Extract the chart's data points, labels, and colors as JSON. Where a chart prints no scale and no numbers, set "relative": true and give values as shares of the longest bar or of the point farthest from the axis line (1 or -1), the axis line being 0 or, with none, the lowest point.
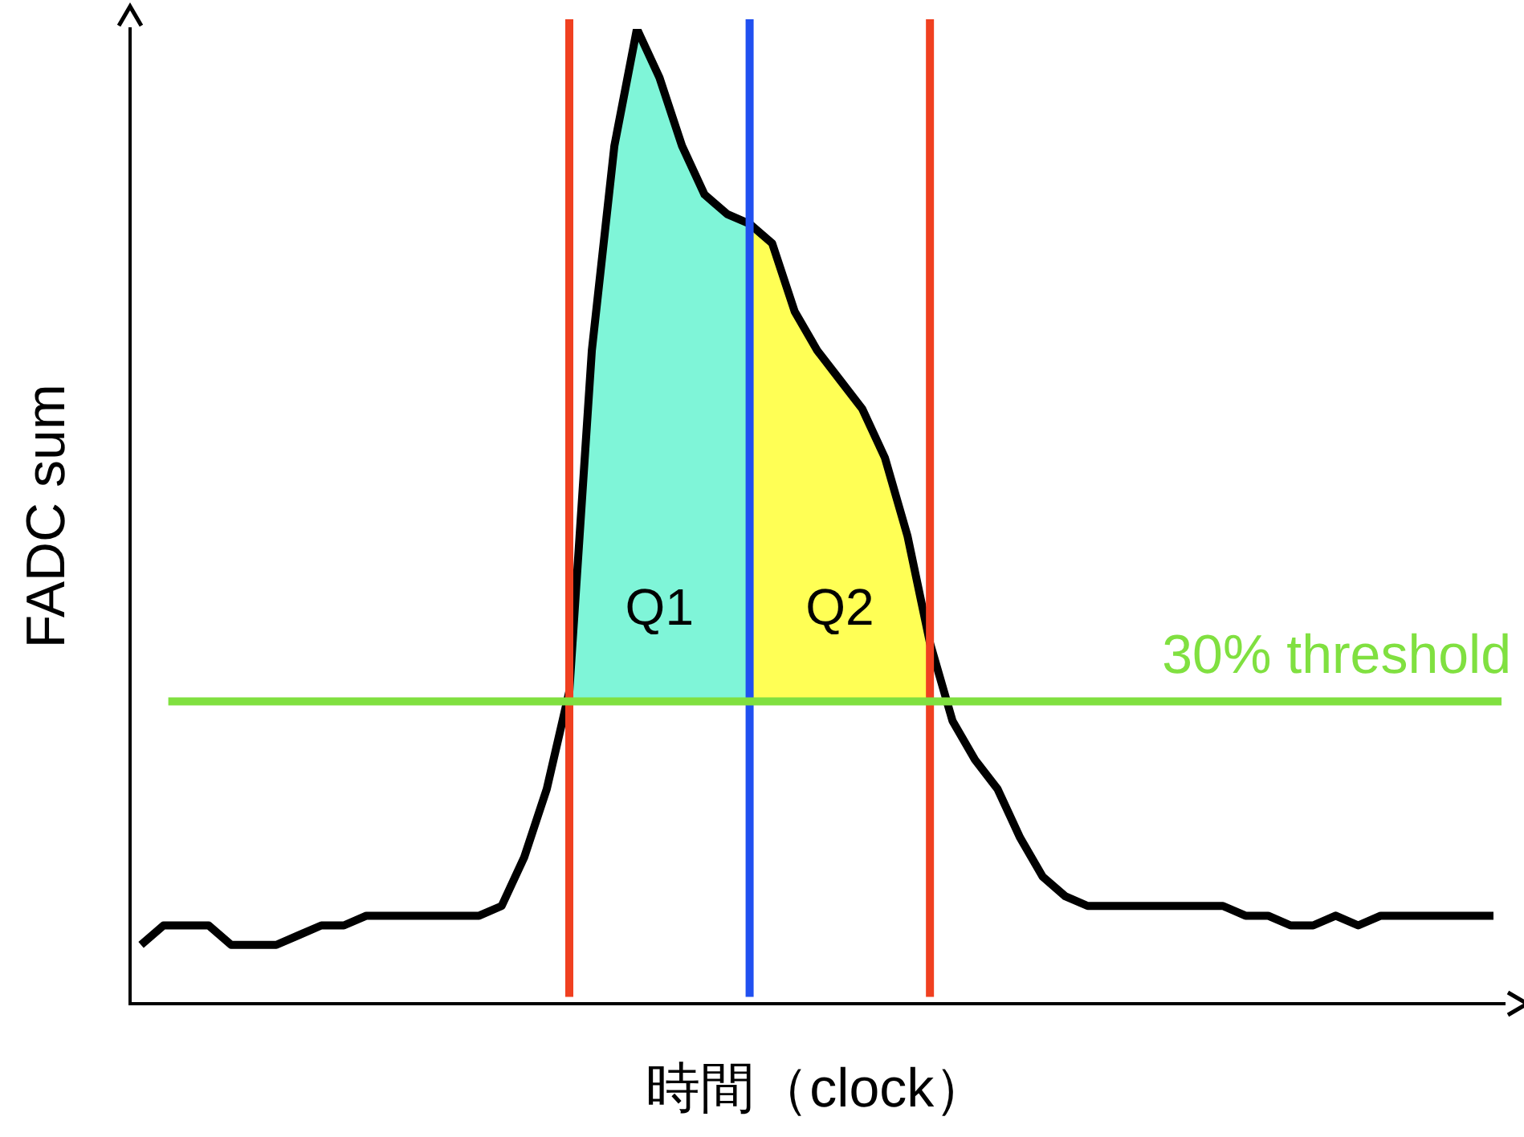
{
  "chart_data": {
    "type": "line",
    "relative": true,
    "legend": false,
    "ylabel": "FADC sum",
    "xlabel": "時間（clock）",
    "categories": [
      null,
      null,
      null,
      null,
      null,
      null,
      null,
      null,
      null,
      null,
      null,
      null,
      null,
      null,
      null,
      null,
      null,
      null,
      null,
      null,
      null,
      null,
      null,
      null,
      null,
      null,
      null,
      null,
      null,
      null,
      null,
      null,
      null,
      null,
      null,
      null,
      null,
      null,
      null,
      null,
      null,
      null,
      null,
      null,
      null,
      null,
      null,
      null,
      null,
      null,
      null,
      null,
      null,
      null,
      null,
      null,
      null,
      null,
      null,
      null,
      null
    ],
    "series": [
      {
        "color": "#000000",
        "values": [
          0.06,
          0.08,
          0.08,
          0.08,
          0.06,
          0.06,
          0.06,
          0.07,
          0.08,
          0.08,
          0.09,
          0.09,
          0.09,
          0.09,
          0.09,
          0.09,
          0.1,
          0.15,
          0.22,
          0.32,
          0.67,
          0.88,
          1.0,
          0.95,
          0.88,
          0.83,
          0.81,
          0.8,
          0.78,
          0.71,
          0.67,
          0.64,
          0.61,
          0.56,
          0.48,
          0.37,
          0.29,
          0.25,
          0.22,
          0.17,
          0.13,
          0.11,
          0.1,
          0.1,
          0.1,
          0.1,
          0.1,
          0.1,
          0.1,
          0.09,
          0.09,
          0.08,
          0.08,
          0.09,
          0.08,
          0.09,
          0.09,
          0.09,
          0.09,
          0.09,
          0.09
        ]
      },
      {
        "type": "area",
        "name": "Q1",
        "color": "#7ff5d8",
        "values": [
          null,
          null,
          null,
          null,
          null,
          null,
          null,
          null,
          null,
          null,
          null,
          null,
          null,
          null,
          null,
          null,
          null,
          null,
          null,
          0.32,
          0.67,
          0.88,
          1.0,
          0.95,
          0.88,
          0.83,
          0.81,
          0.8,
          null,
          null,
          null,
          null,
          null,
          null,
          null,
          null,
          null,
          null,
          null,
          null,
          null,
          null,
          null,
          null,
          null,
          null,
          null,
          null,
          null,
          null,
          null,
          null,
          null,
          null,
          null,
          null,
          null,
          null,
          null,
          null,
          null
        ]
      },
      {
        "type": "area",
        "name": "Q2",
        "color": "#ffff55",
        "values": [
          null,
          null,
          null,
          null,
          null,
          null,
          null,
          null,
          null,
          null,
          null,
          null,
          null,
          null,
          null,
          null,
          null,
          null,
          null,
          null,
          null,
          null,
          null,
          null,
          null,
          null,
          null,
          0.8,
          0.78,
          0.71,
          0.67,
          0.64,
          0.61,
          0.56,
          0.48,
          0.37,
          null,
          null,
          null,
          null,
          null,
          null,
          null,
          null,
          null,
          null,
          null,
          null,
          null,
          null,
          null,
          null,
          null,
          null,
          null,
          null,
          null,
          null,
          null,
          null,
          null
        ]
      }
    ],
    "ref_lines": [
      {
        "axis": "y",
        "value": 0.31,
        "label": "30% threshold",
        "color": "#80e040"
      }
    ]
  }
}
